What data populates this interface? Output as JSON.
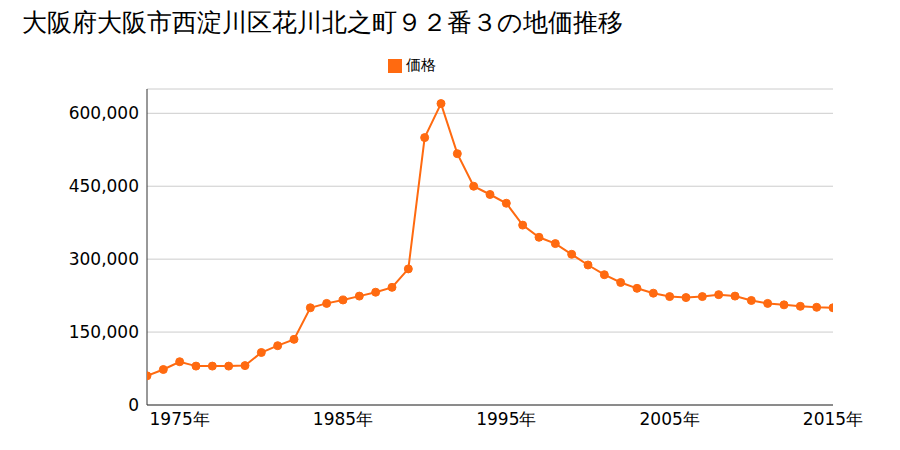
{
  "chart_data": {
    "type": "line",
    "title": "大阪府大阪市西淀川区花川北之町９２番３の地価推移",
    "x": [
      1973,
      1974,
      1975,
      1976,
      1977,
      1978,
      1979,
      1980,
      1981,
      1982,
      1983,
      1984,
      1985,
      1986,
      1987,
      1988,
      1989,
      1990,
      1991,
      1992,
      1993,
      1994,
      1995,
      1996,
      1997,
      1998,
      1999,
      2000,
      2001,
      2002,
      2003,
      2004,
      2005,
      2006,
      2007,
      2008,
      2009,
      2010,
      2011,
      2012,
      2013,
      2014,
      2015
    ],
    "series": [
      {
        "name": "価格",
        "color": "#ff6a10",
        "marker": "circle",
        "values": [
          60000,
          73000,
          89000,
          80000,
          80000,
          80000,
          81000,
          108000,
          122000,
          135000,
          200000,
          209000,
          216000,
          224000,
          232000,
          242000,
          280000,
          550000,
          620000,
          517000,
          450000,
          433000,
          415000,
          370000,
          345000,
          332000,
          310000,
          288000,
          268000,
          252000,
          240000,
          230000,
          223000,
          221000,
          223000,
          227000,
          224000,
          215000,
          209000,
          206000,
          203000,
          201000,
          200000
        ]
      }
    ],
    "xlim": [
      1973,
      2015
    ],
    "xticks": [
      {
        "value": 1975,
        "label": "1975年"
      },
      {
        "value": 1985,
        "label": "1985年"
      },
      {
        "value": 1995,
        "label": "1995年"
      },
      {
        "value": 2005,
        "label": "2005年"
      },
      {
        "value": 2015,
        "label": "2015年"
      }
    ],
    "ylim": [
      0,
      650000
    ],
    "yticks": [
      0,
      {
        "value": 150000,
        "label": "150,000"
      },
      {
        "value": 300000,
        "label": "300,000"
      },
      {
        "value": 450000,
        "label": "450,000"
      },
      {
        "value": 600000,
        "label": "600,000"
      }
    ],
    "grid": true,
    "legend": "top"
  }
}
